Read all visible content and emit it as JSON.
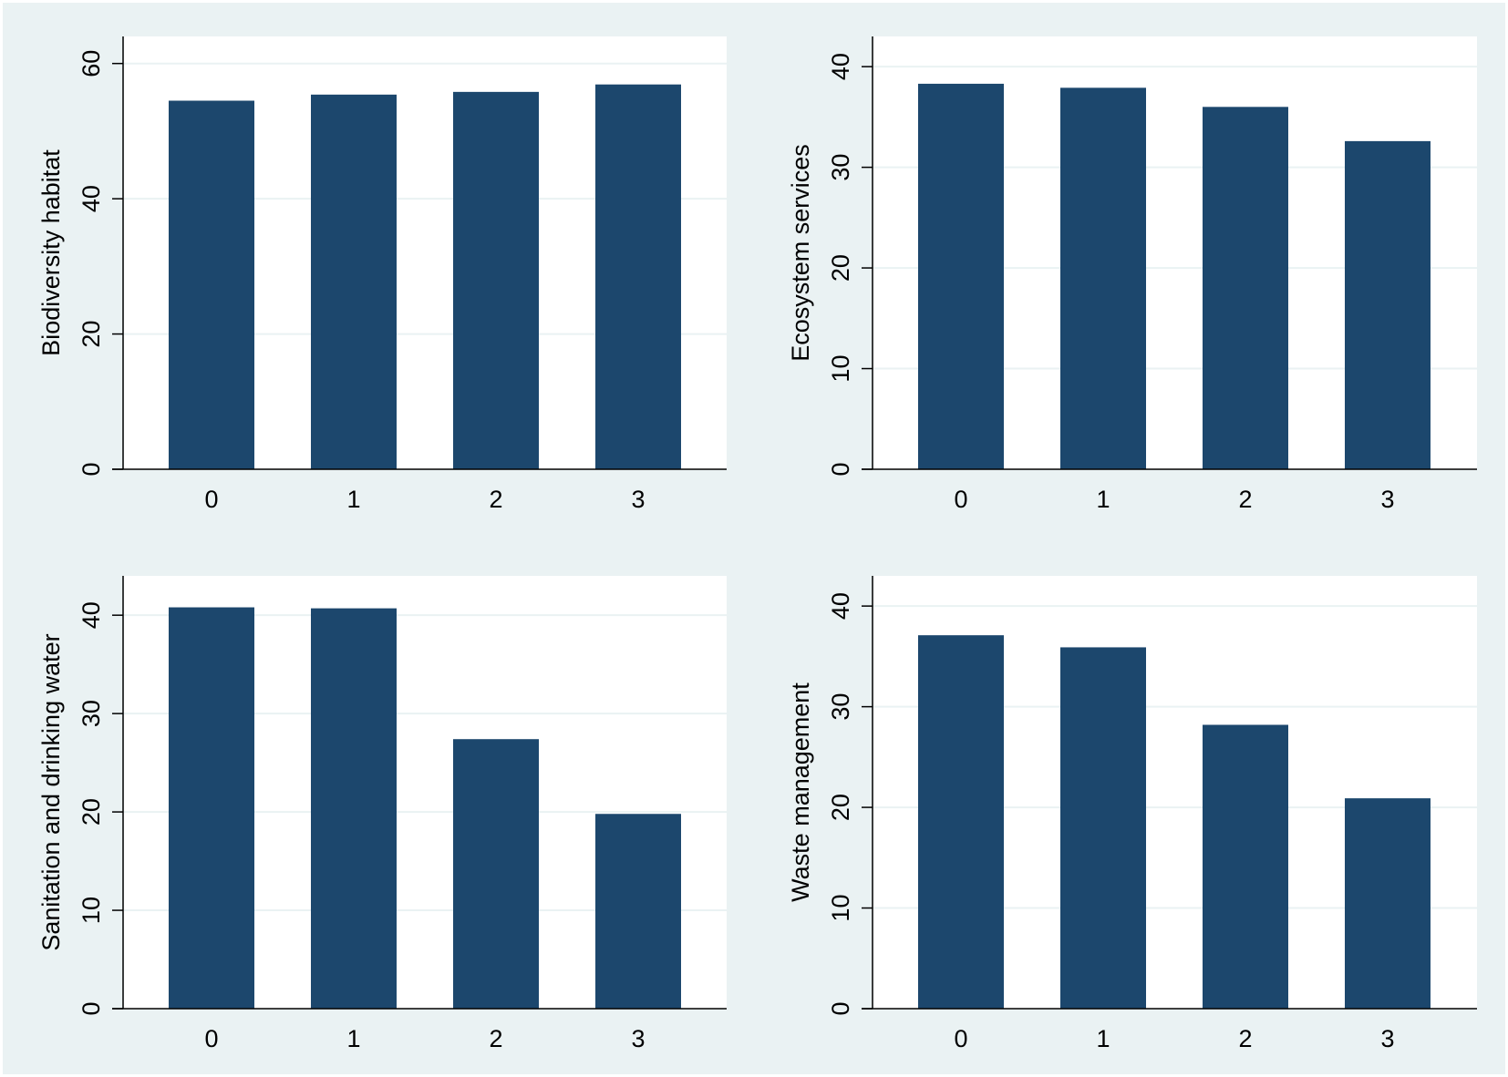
{
  "colors": {
    "background": "#eaf2f3",
    "plot_area": "#ffffff",
    "bar": "#1c476d",
    "grid": "#eaf2f3",
    "axis": "#000000",
    "text": "#000000"
  },
  "chart_data": [
    {
      "type": "bar",
      "title": "",
      "xlabel": "",
      "ylabel": "Biodiversity habitat",
      "categories": [
        "0",
        "1",
        "2",
        "3"
      ],
      "values": [
        54.5,
        55.4,
        55.8,
        56.9
      ],
      "ylim": [
        0,
        64
      ],
      "yticks": [
        0,
        20,
        40,
        60
      ],
      "grid": true
    },
    {
      "type": "bar",
      "title": "",
      "xlabel": "",
      "ylabel": "Ecosystem services",
      "categories": [
        "0",
        "1",
        "2",
        "3"
      ],
      "values": [
        38.3,
        37.9,
        36.0,
        32.6
      ],
      "ylim": [
        0,
        43
      ],
      "yticks": [
        0,
        10,
        20,
        30,
        40
      ],
      "grid": true
    },
    {
      "type": "bar",
      "title": "",
      "xlabel": "",
      "ylabel": "Sanitation and drinking water",
      "categories": [
        "0",
        "1",
        "2",
        "3"
      ],
      "values": [
        40.8,
        40.7,
        27.4,
        19.8
      ],
      "ylim": [
        0,
        44
      ],
      "yticks": [
        0,
        10,
        20,
        30,
        40
      ],
      "grid": true
    },
    {
      "type": "bar",
      "title": "",
      "xlabel": "",
      "ylabel": "Waste management",
      "categories": [
        "0",
        "1",
        "2",
        "3"
      ],
      "values": [
        37.1,
        35.9,
        28.2,
        20.9
      ],
      "ylim": [
        0,
        43
      ],
      "yticks": [
        0,
        10,
        20,
        30,
        40
      ],
      "grid": true
    }
  ]
}
